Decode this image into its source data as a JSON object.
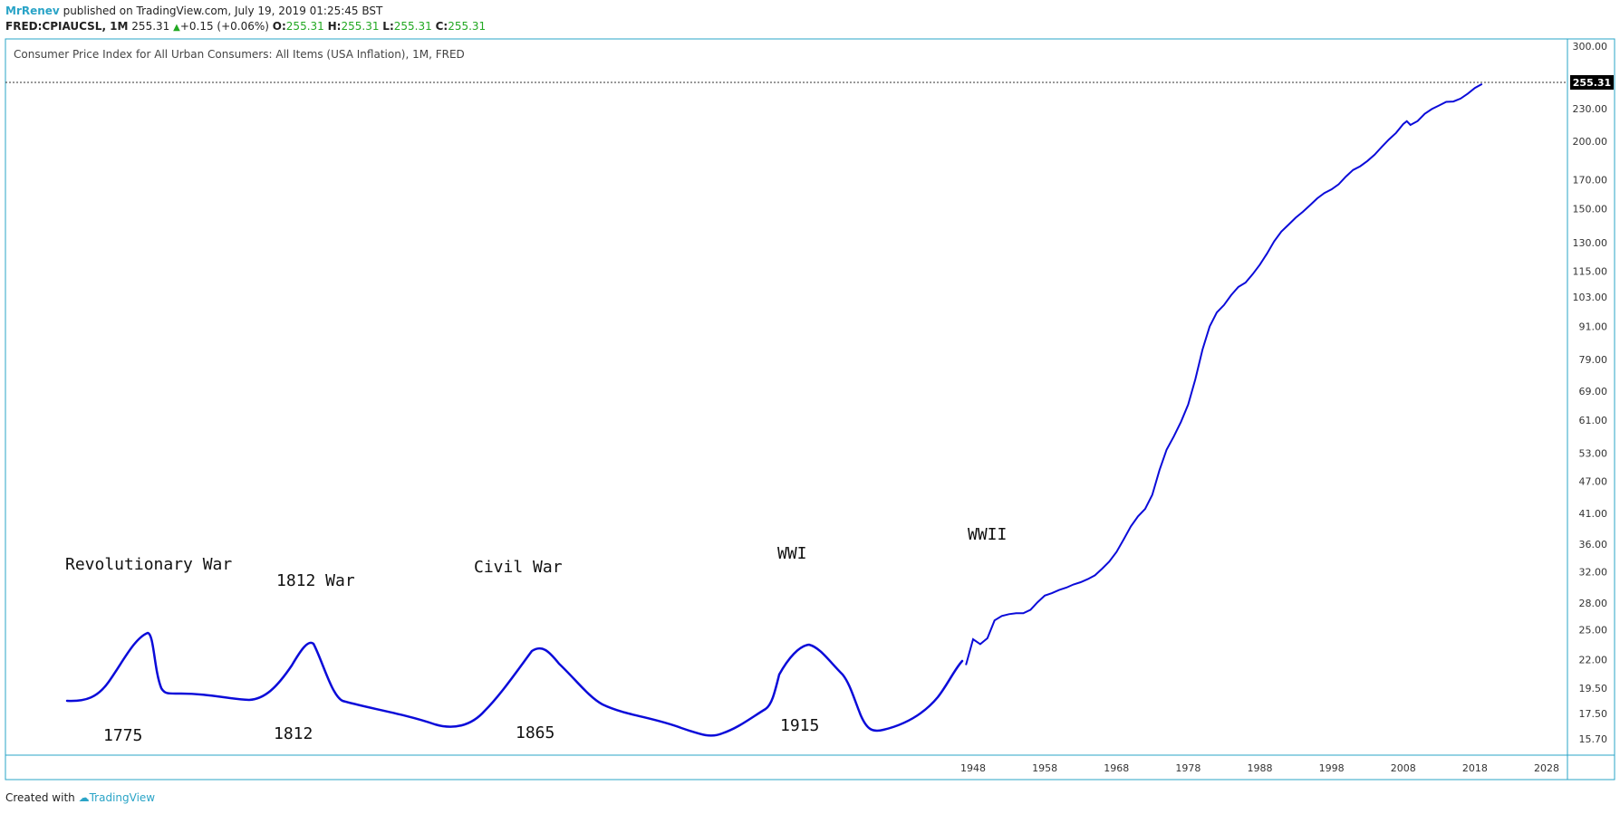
{
  "header": {
    "publisher": "MrRenev",
    "published_text": "published on TradingView.com, July 19, 2019 01:25:45 BST",
    "symbol": "FRED:CPIAUCSL, 1M",
    "last": "255.31",
    "change": "+0.15 (+0.06%)",
    "o_label": "O:",
    "o_val": "255.31",
    "h_label": "H:",
    "h_val": "255.31",
    "l_label": "L:",
    "l_val": "255.31",
    "c_label": "C:",
    "c_val": "255.31"
  },
  "footer": {
    "created_with": "Created with",
    "brand": "TradingView"
  },
  "colors": {
    "line": "#0b0bd9",
    "border": "#2aa4c7",
    "up": "#22a822"
  },
  "chart_data": {
    "type": "line",
    "title": "Consumer Price Index for All Urban Consumers: All Items (USA Inflation), 1M, FRED",
    "y_ticks": [
      "300.00",
      "255.31",
      "230.00",
      "200.00",
      "170.00",
      "150.00",
      "130.00",
      "115.00",
      "103.00",
      "91.00",
      "79.00",
      "69.00",
      "61.00",
      "53.00",
      "47.00",
      "41.00",
      "36.00",
      "32.00",
      "28.00",
      "25.00",
      "22.00",
      "19.50",
      "17.50",
      "15.70"
    ],
    "y_tick_values": [
      300,
      255.31,
      230,
      200,
      170,
      150,
      130,
      115,
      103,
      91,
      79,
      69,
      61,
      53,
      47,
      41,
      36,
      32,
      28,
      25,
      22,
      19.5,
      17.5,
      15.7
    ],
    "last_value_label": "255.31",
    "x_ticks": [
      "1948",
      "1958",
      "1968",
      "1978",
      "1988",
      "1998",
      "2008",
      "2018",
      "2028"
    ],
    "x_tick_values": [
      1948,
      1958,
      1968,
      1978,
      1988,
      1998,
      2008,
      2018,
      2028
    ],
    "scale": "log",
    "series": [
      {
        "x": [
          1947,
          1948,
          1949,
          1950,
          1951,
          1952,
          1953,
          1954,
          1955,
          1956,
          1957,
          1958,
          1959,
          1960,
          1961,
          1962,
          1963,
          1964,
          1965,
          1966,
          1967,
          1968,
          1969,
          1970,
          1971,
          1972,
          1973,
          1974,
          1975,
          1976,
          1977,
          1978,
          1979,
          1980,
          1981,
          1982,
          1983,
          1984,
          1985,
          1986,
          1987,
          1988,
          1989,
          1990,
          1991,
          1992,
          1993,
          1994,
          1995,
          1996,
          1997,
          1998,
          1999,
          2000,
          2001,
          2002,
          2003,
          2004,
          2005,
          2006,
          2007,
          2008,
          2008.5,
          2009,
          2010,
          2011,
          2012,
          2013,
          2014,
          2015,
          2016,
          2017,
          2018,
          2019
        ],
        "y": [
          21.5,
          24.0,
          23.5,
          24.1,
          26.0,
          26.5,
          26.7,
          26.8,
          26.8,
          27.2,
          28.1,
          28.9,
          29.2,
          29.6,
          29.9,
          30.3,
          30.6,
          31.0,
          31.5,
          32.4,
          33.4,
          34.8,
          36.7,
          38.8,
          40.5,
          41.8,
          44.4,
          49.3,
          53.8,
          56.9,
          60.6,
          65.2,
          72.6,
          82.4,
          90.9,
          96.5,
          99.6,
          103.9,
          107.6,
          109.6,
          113.6,
          118.3,
          124.0,
          130.7,
          136.2,
          140.3,
          144.5,
          148.2,
          152.4,
          156.9,
          160.5,
          163.0,
          166.6,
          172.2,
          177.1,
          179.9,
          184.0,
          188.9,
          195.3,
          201.6,
          207.3,
          215.3,
          218.0,
          214.5,
          218.1,
          224.9,
          229.6,
          233.0,
          236.7,
          237.0,
          240.0,
          245.1,
          251.1,
          255.31
        ]
      }
    ],
    "annotations": [
      {
        "text": "Revolutionary War"
      },
      {
        "text": "1812 War"
      },
      {
        "text": "Civil War"
      },
      {
        "text": "WWI"
      },
      {
        "text": "WWII"
      },
      {
        "text": "1775"
      },
      {
        "text": "1812"
      },
      {
        "text": "1865"
      },
      {
        "text": "1915"
      }
    ]
  }
}
